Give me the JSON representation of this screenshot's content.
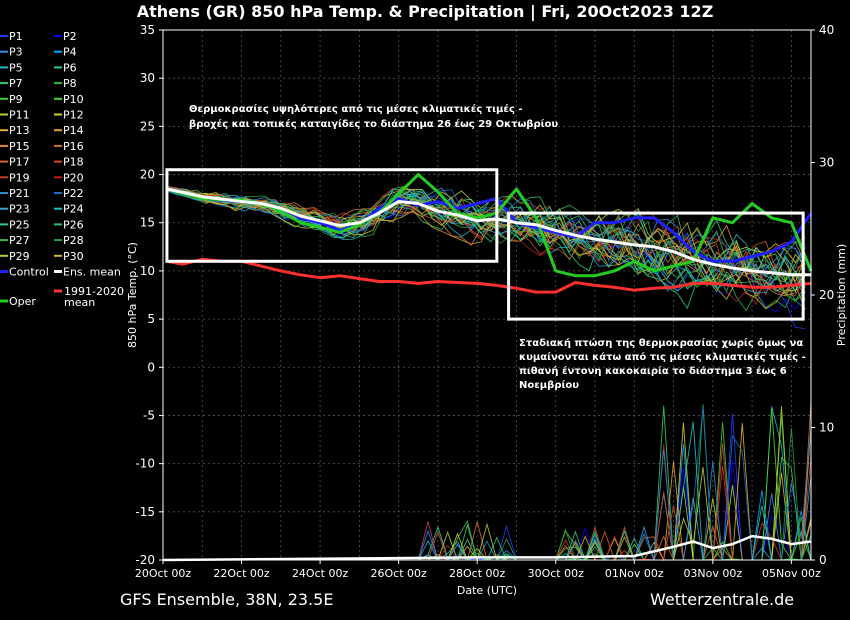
{
  "chart_data": {
    "type": "line",
    "title": "Athens  (GR)  850 hPa Temp. & Precipitation | Fri, 20Oct2023 12Z",
    "ylabel": "850 hPa Temp. (°C)",
    "y2label": "Precipitation (mm)",
    "xlabel": "Date (UTC)",
    "ylim": [
      -20,
      35
    ],
    "y2lim": [
      0,
      40
    ],
    "yticks": [
      -20,
      -15,
      -10,
      -5,
      0,
      5,
      10,
      15,
      20,
      25,
      30,
      35
    ],
    "y2ticks": [
      0,
      10,
      20,
      30,
      40
    ],
    "xrange_days": [
      0,
      16.5
    ],
    "x_ticks": [
      {
        "day": 0,
        "label": "20Oct 00z"
      },
      {
        "day": 2,
        "label": "22Oct 00z"
      },
      {
        "day": 4,
        "label": "24Oct 00z"
      },
      {
        "day": 6,
        "label": "26Oct 00z"
      },
      {
        "day": 8,
        "label": "28Oct 00z"
      },
      {
        "day": 10,
        "label": "30Oct 00z"
      },
      {
        "day": 12,
        "label": "01Nov 00z"
      },
      {
        "day": 14,
        "label": "03Nov 00z"
      },
      {
        "day": 16,
        "label": "05Nov 00z"
      }
    ],
    "grid": true,
    "legend": {
      "placement": "left",
      "entries": [
        {
          "name": "P1",
          "color": "#1e3cff"
        },
        {
          "name": "P2",
          "color": "#0000ff"
        },
        {
          "name": "P3",
          "color": "#3a8ff0"
        },
        {
          "name": "P4",
          "color": "#00aaff"
        },
        {
          "name": "P5",
          "color": "#1fb7c9"
        },
        {
          "name": "P6",
          "color": "#1fd19a"
        },
        {
          "name": "P7",
          "color": "#2ccf6e"
        },
        {
          "name": "P8",
          "color": "#28b84a"
        },
        {
          "name": "P9",
          "color": "#3ccc3c"
        },
        {
          "name": "P10",
          "color": "#4ed82a"
        },
        {
          "name": "P11",
          "color": "#b6d22a"
        },
        {
          "name": "P12",
          "color": "#d8cc2a"
        },
        {
          "name": "P13",
          "color": "#e0b030"
        },
        {
          "name": "P14",
          "color": "#e6a030"
        },
        {
          "name": "P15",
          "color": "#e08840"
        },
        {
          "name": "P16",
          "color": "#d87030"
        },
        {
          "name": "P17",
          "color": "#d8602a"
        },
        {
          "name": "P18",
          "color": "#d04a2a"
        },
        {
          "name": "P19",
          "color": "#c83a2a"
        },
        {
          "name": "P20",
          "color": "#b82020"
        },
        {
          "name": "P21",
          "color": "#2a8ad0"
        },
        {
          "name": "P22",
          "color": "#1c6fc0"
        },
        {
          "name": "P23",
          "color": "#3aa2d8"
        },
        {
          "name": "P24",
          "color": "#22c0c0"
        },
        {
          "name": "P25",
          "color": "#2aca92"
        },
        {
          "name": "P26",
          "color": "#26c06a"
        },
        {
          "name": "P27",
          "color": "#3ab850"
        },
        {
          "name": "P28",
          "color": "#20a040"
        },
        {
          "name": "P29",
          "color": "#b8cc30"
        },
        {
          "name": "P30",
          "color": "#d6b830"
        },
        {
          "name": "Control",
          "color": "#1f1fff"
        },
        {
          "name": "Ens. mean",
          "color": "#ffffff"
        },
        {
          "name": "Oper",
          "color": "#22cc22"
        },
        {
          "name": "1991-2020\nmean",
          "color": "#ff3030"
        }
      ]
    },
    "series": [
      {
        "name": "Control",
        "color": "#1f1fff",
        "x": [
          0.1,
          1,
          2,
          2.5,
          3,
          3.5,
          4,
          4.5,
          5,
          5.5,
          6,
          6.5,
          7,
          7.5,
          8,
          8.5,
          9,
          9.5,
          10,
          10.5,
          11,
          11.5,
          12,
          12.5,
          13,
          13.5,
          14,
          14.5,
          15,
          15.5,
          16,
          16.5
        ],
        "y": [
          18.5,
          17.5,
          17.2,
          17,
          16.5,
          15.5,
          15,
          14.2,
          14.8,
          16.5,
          17.5,
          16.8,
          17.2,
          16.5,
          17,
          17.5,
          15,
          14.5,
          14,
          13.5,
          15,
          15,
          15.5,
          15.5,
          14,
          12,
          11,
          11,
          11.5,
          12,
          13,
          16
        ]
      },
      {
        "name": "Oper",
        "color": "#22cc22",
        "x": [
          0.1,
          1,
          2,
          2.5,
          3,
          3.5,
          4,
          4.5,
          5,
          5.5,
          6,
          6.5,
          7,
          7.5,
          8,
          8.5,
          9,
          9.5,
          10,
          10.5,
          11,
          11.5,
          12,
          12.5,
          13,
          13.5,
          14,
          14.5,
          15,
          15.5,
          16,
          16.5
        ],
        "y": [
          18.5,
          17.5,
          17.3,
          17,
          16.2,
          15,
          14.5,
          14,
          14.8,
          16,
          18,
          20,
          18.2,
          16,
          15.5,
          16,
          18.5,
          15.5,
          10,
          9.5,
          9.5,
          10,
          11,
          10,
          10.5,
          11,
          15.5,
          15,
          17,
          15.5,
          15,
          10
        ]
      },
      {
        "name": "Ens. mean",
        "color": "#ffffff",
        "x": [
          0.1,
          1,
          2,
          2.5,
          3,
          3.5,
          4,
          4.5,
          5,
          5.5,
          6,
          6.5,
          7,
          7.5,
          8,
          8.5,
          9,
          9.5,
          10,
          10.5,
          11,
          11.5,
          12,
          12.5,
          13,
          13.5,
          14,
          14.5,
          15,
          15.5,
          16,
          16.5
        ],
        "y": [
          18.5,
          17.7,
          17.2,
          17,
          16.5,
          15.7,
          15.2,
          14.7,
          15,
          16,
          17.2,
          17,
          16.2,
          15.8,
          15.2,
          15.4,
          15,
          14.8,
          14.2,
          13.7,
          13.3,
          13,
          12.7,
          12.5,
          12,
          11.2,
          10.7,
          10.3,
          10,
          9.8,
          9.6,
          9.6
        ]
      },
      {
        "name": "1991-2020\nmean",
        "color": "#ff3030",
        "x": [
          0.1,
          0.5,
          1,
          1.5,
          2,
          2.5,
          3,
          3.5,
          4,
          4.5,
          5,
          5.5,
          6,
          6.5,
          7,
          7.5,
          8,
          8.5,
          9,
          9.5,
          10,
          10.5,
          11,
          11.5,
          12,
          12.5,
          13,
          13.5,
          14,
          14.5,
          15,
          15.5,
          16,
          16.5
        ],
        "y": [
          11,
          10.7,
          11.2,
          11,
          11,
          10.5,
          10,
          9.6,
          9.3,
          9.5,
          9.2,
          8.9,
          8.9,
          8.7,
          8.9,
          8.8,
          8.7,
          8.5,
          8.2,
          7.8,
          7.8,
          8.8,
          8.5,
          8.3,
          8,
          8.2,
          8.3,
          8.7,
          8.7,
          8.5,
          8.3,
          8.3,
          8.5,
          8.7
        ]
      },
      {
        "name": "Ens. mean precipitation",
        "axis": "y2",
        "color": "#ffffff",
        "x": [
          0,
          8,
          10,
          12,
          13,
          13.5,
          14,
          14.5,
          15,
          15.5,
          16,
          16.5
        ],
        "y": [
          0,
          0.2,
          0.2,
          0.3,
          1,
          1.4,
          0.9,
          1.2,
          1.8,
          1.6,
          1.2,
          1.4
        ]
      }
    ],
    "annotations": [
      {
        "text": "Θερμοκρασίες υψηλότερες από τις μέσες κλιματικές τιμές -"
      },
      {
        "text": "βροχές και τοπικές καταιγίδες το διάστημα 26 έως 29 Οκτωβρίου"
      },
      {
        "text": "Σταδιακή πτώση της θερμοκρασίας χωρίς όμως να"
      },
      {
        "text": "κυμαίνονται κάτω από τις μέσες κλιματικές τιμές -"
      },
      {
        "text": "πιθανή έντονη κακοκαιρία το διάστημα 3 έως 6"
      },
      {
        "text": "Νοεμβρίου"
      }
    ],
    "highlight_boxes": [
      {
        "x": [
          0.1,
          8.5
        ],
        "y": [
          11,
          20.5
        ]
      },
      {
        "x": [
          8.8,
          16.3
        ],
        "y": [
          5,
          16
        ]
      }
    ]
  },
  "footer": {
    "left": "GFS Ensemble, 38N, 23.5E",
    "right": "Wetterzentrale.de"
  }
}
